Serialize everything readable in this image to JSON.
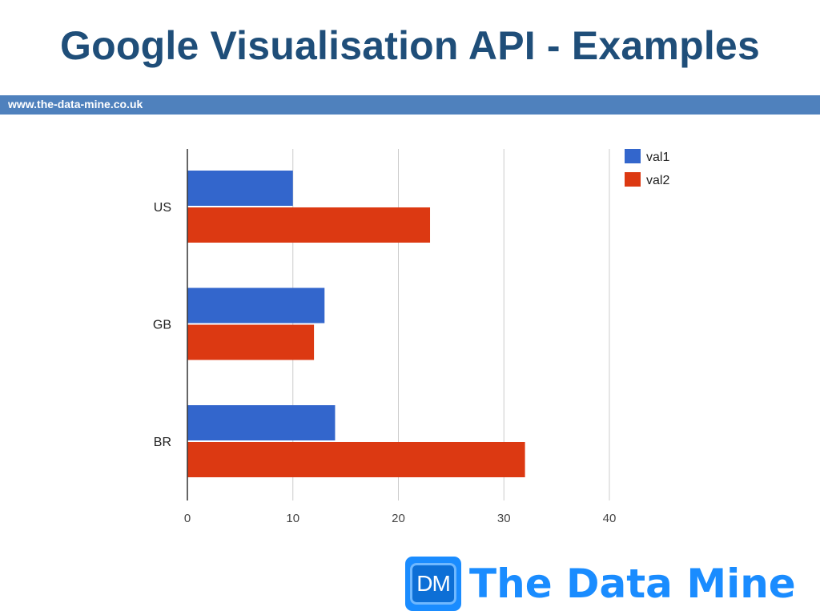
{
  "slide": {
    "title": "Google Visualisation API - Examples",
    "url": "www.the-data-mine.co.uk"
  },
  "logo": {
    "initials": "DM",
    "text": "The Data Mine",
    "color": "#1a8cff"
  },
  "chart_data": {
    "type": "bar",
    "orientation": "horizontal",
    "categories": [
      "US",
      "GB",
      "BR"
    ],
    "series": [
      {
        "name": "val1",
        "values": [
          10,
          13,
          14
        ],
        "color": "#3366cc"
      },
      {
        "name": "val2",
        "values": [
          23,
          12,
          32
        ],
        "color": "#dc3912"
      }
    ],
    "xlim": [
      0,
      40
    ],
    "xticks": [
      0,
      10,
      20,
      30,
      40
    ],
    "grid": true,
    "legend": "top-right",
    "title": "",
    "xlabel": "",
    "ylabel": ""
  }
}
